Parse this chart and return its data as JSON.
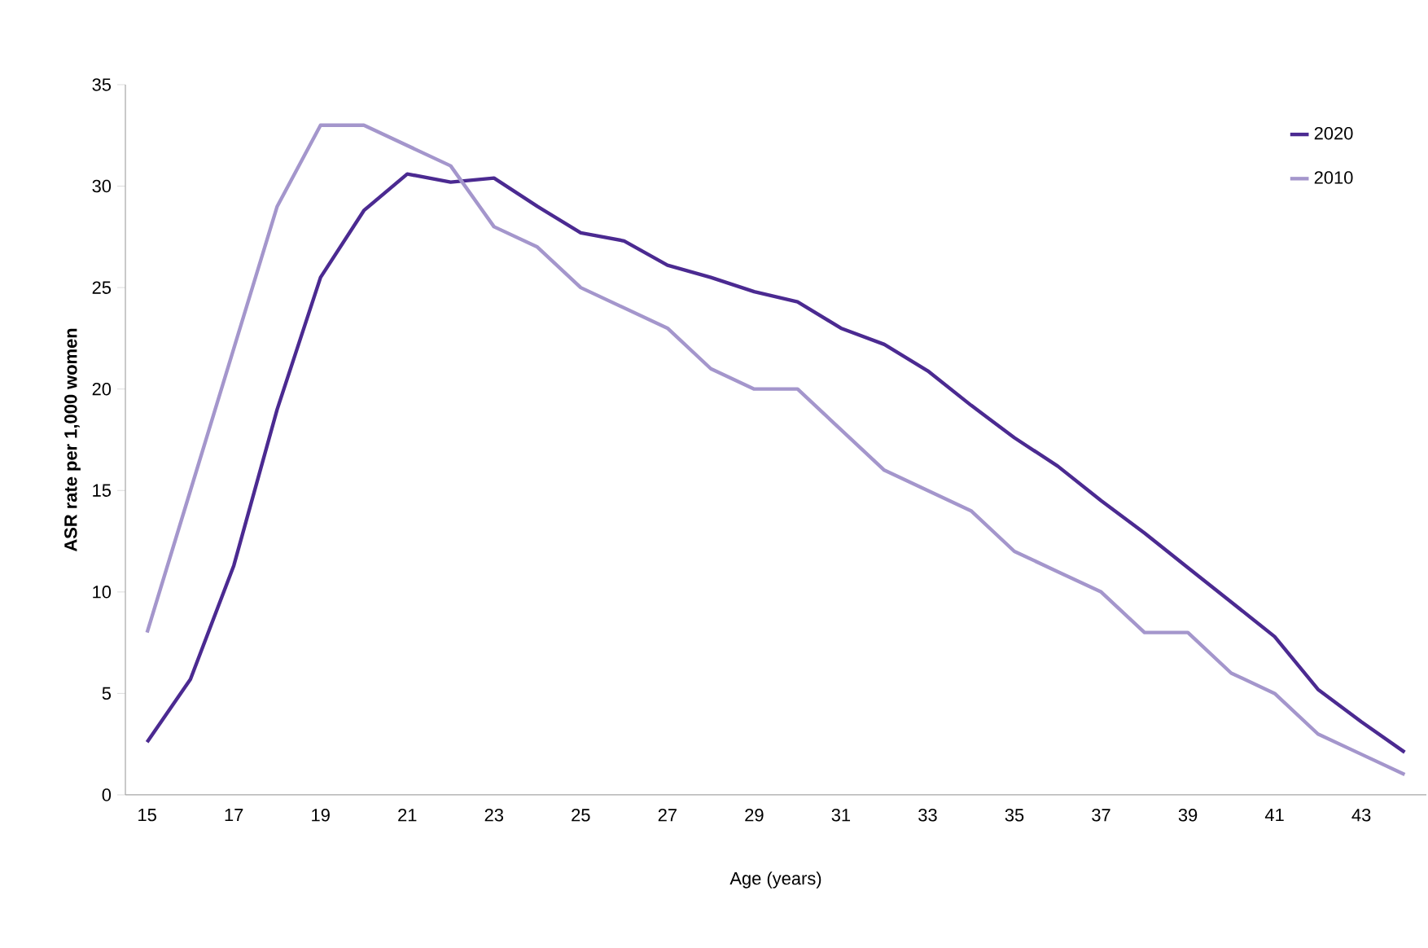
{
  "chart_data": {
    "type": "line",
    "xlabel": "Age (years)",
    "ylabel": "ASR rate per 1,000 women",
    "categories": [
      "15",
      null,
      "17",
      null,
      "19",
      null,
      "21",
      null,
      "23",
      null,
      "25",
      null,
      "27",
      null,
      "29",
      null,
      "31",
      null,
      "33",
      null,
      "35",
      null,
      "37",
      null,
      "39",
      null,
      "41",
      null,
      "43",
      null
    ],
    "series": [
      {
        "name": "2020",
        "color": "#4b2a91",
        "values": [
          2.6,
          5.7,
          11.3,
          19,
          25.5,
          28.8,
          30.6,
          30.2,
          30.4,
          29,
          27.7,
          27.3,
          26.1,
          25.5,
          24.8,
          24.3,
          23,
          22.2,
          20.9,
          19.2,
          17.6,
          16.2,
          14.5,
          12.9,
          11.2,
          9.5,
          7.8,
          5.2,
          3.6,
          2.1
        ]
      },
      {
        "name": "2010",
        "color": "#a496cc",
        "values": [
          8,
          15,
          22,
          29,
          33,
          33,
          32,
          31,
          28,
          27,
          25,
          24,
          23,
          21,
          20,
          20,
          18,
          16,
          15,
          14,
          12,
          11,
          10,
          8,
          8,
          6,
          5,
          3,
          2,
          1
        ]
      }
    ],
    "ylim": [
      0,
      35
    ],
    "yticks": [
      0,
      5,
      10,
      15,
      20,
      25,
      30,
      35
    ],
    "grid": false,
    "legend": "top right",
    "marker": "none",
    "line_style": "solid"
  }
}
